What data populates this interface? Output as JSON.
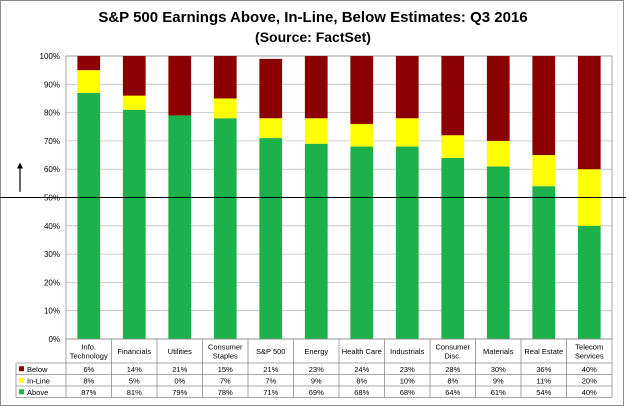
{
  "chart_data": {
    "type": "bar",
    "stacked": true,
    "title": "S&P 500 Earnings Above, In-Line, Below Estimates: Q3 2016",
    "subtitle": "(Source: FactSet)",
    "categories": [
      [
        "Info.",
        "Technology"
      ],
      [
        "Financials"
      ],
      [
        "Utilities"
      ],
      [
        "Consumer",
        "Staples"
      ],
      [
        "S&P 500"
      ],
      [
        "Energy"
      ],
      [
        "Health Care"
      ],
      [
        "Industrials"
      ],
      [
        "Consumer",
        "Disc."
      ],
      [
        "Materials"
      ],
      [
        "Real Estate"
      ],
      [
        "Telecom",
        "Services"
      ]
    ],
    "series": [
      {
        "name": "Below",
        "color": "#8b0000",
        "values": [
          6,
          14,
          21,
          15,
          21,
          23,
          24,
          23,
          28,
          30,
          36,
          40
        ]
      },
      {
        "name": "In-Line",
        "color": "#ffff00",
        "values": [
          8,
          5,
          0,
          7,
          7,
          9,
          8,
          10,
          8,
          9,
          11,
          20
        ]
      },
      {
        "name": "Above",
        "color": "#1db14b",
        "values": [
          87,
          81,
          79,
          78,
          71,
          69,
          68,
          68,
          64,
          61,
          54,
          40
        ]
      }
    ],
    "stack_order_bottom_to_top": [
      "Above",
      "In-Line",
      "Below"
    ],
    "ylim": [
      0,
      100
    ],
    "yticks": [
      "0%",
      "10%",
      "20%",
      "30%",
      "40%",
      "50%",
      "60%",
      "70%",
      "80%",
      "90%",
      "100%"
    ],
    "value_suffix": "%",
    "grid": true,
    "data_table": true,
    "reference_line": 50
  }
}
